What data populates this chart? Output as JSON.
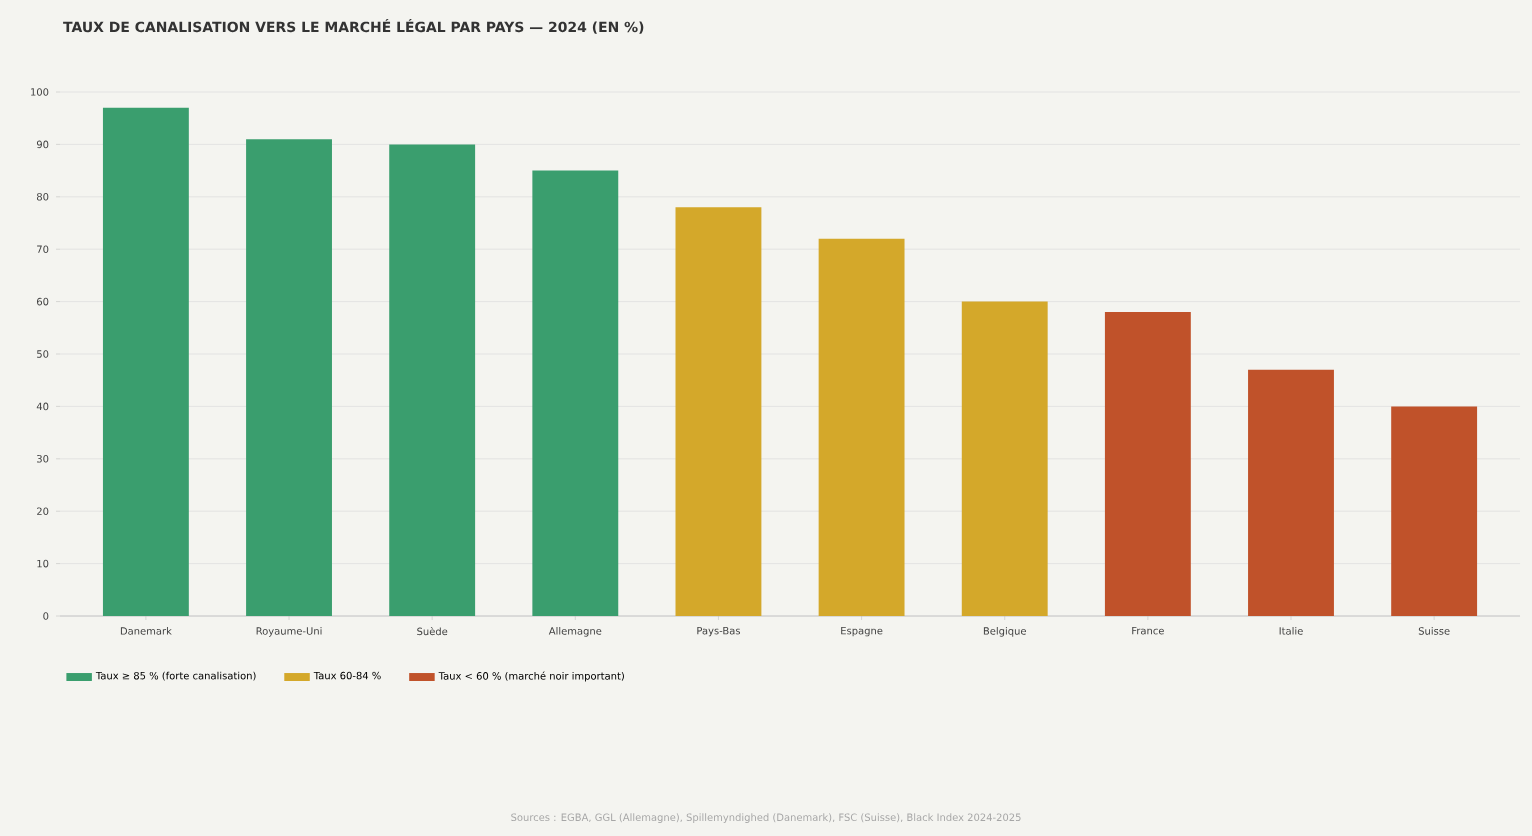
{
  "chart_data": {
    "type": "bar",
    "title": "TAUX DE CANALISATION VERS LE MARCHÉ LÉGAL PAR PAYS — 2024 (EN %)",
    "categories": [
      "Danemark",
      "Royaume-Uni",
      "Suède",
      "Allemagne",
      "Pays-Bas",
      "Espagne",
      "Belgique",
      "France",
      "Italie",
      "Suisse"
    ],
    "series": [
      {
        "name": "Taux ≥ 85 % (forte canalisation)",
        "color": "#3a9e6e",
        "values": [
          97,
          91,
          90,
          85,
          null,
          null,
          null,
          null,
          null,
          null
        ]
      },
      {
        "name": "Taux 60-84 %",
        "color": "#d4a82a",
        "values": [
          null,
          null,
          null,
          null,
          78,
          72,
          60,
          null,
          null,
          null
        ]
      },
      {
        "name": "Taux < 60 % (marché noir important)",
        "color": "#c0522a",
        "values": [
          null,
          null,
          null,
          null,
          null,
          null,
          null,
          58,
          47,
          40
        ]
      }
    ],
    "ylim": [
      0,
      100
    ],
    "yticks": [
      0,
      10,
      20,
      30,
      40,
      50,
      60,
      70,
      80,
      90,
      100
    ],
    "grid": "y",
    "legend": "bottom",
    "annotations": [
      "Sources : EGBA, GGL (Allemagne), Spillemyndighed (Danemark), FSC (Suisse), Black Index 2024-2025"
    ]
  }
}
